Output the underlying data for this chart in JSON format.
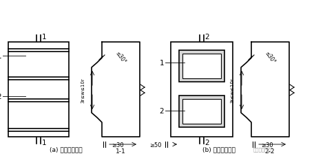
{
  "fig_width": 4.72,
  "fig_height": 2.28,
  "dpi": 100,
  "bg_color": "#ffffff",
  "line_color": "#000000",
  "label_a": "(a) 键槽贯通截面",
  "label_b": "(b) 键槽分段截面",
  "section_label_11": "1-1",
  "section_label_22": "2-2",
  "dim_30": "≤30°",
  "dim_w": "3r≤w≤10r",
  "dim_30b": "≥30",
  "dim_50": "≥50",
  "lw": 0.8,
  "lw_thick": 1.2
}
